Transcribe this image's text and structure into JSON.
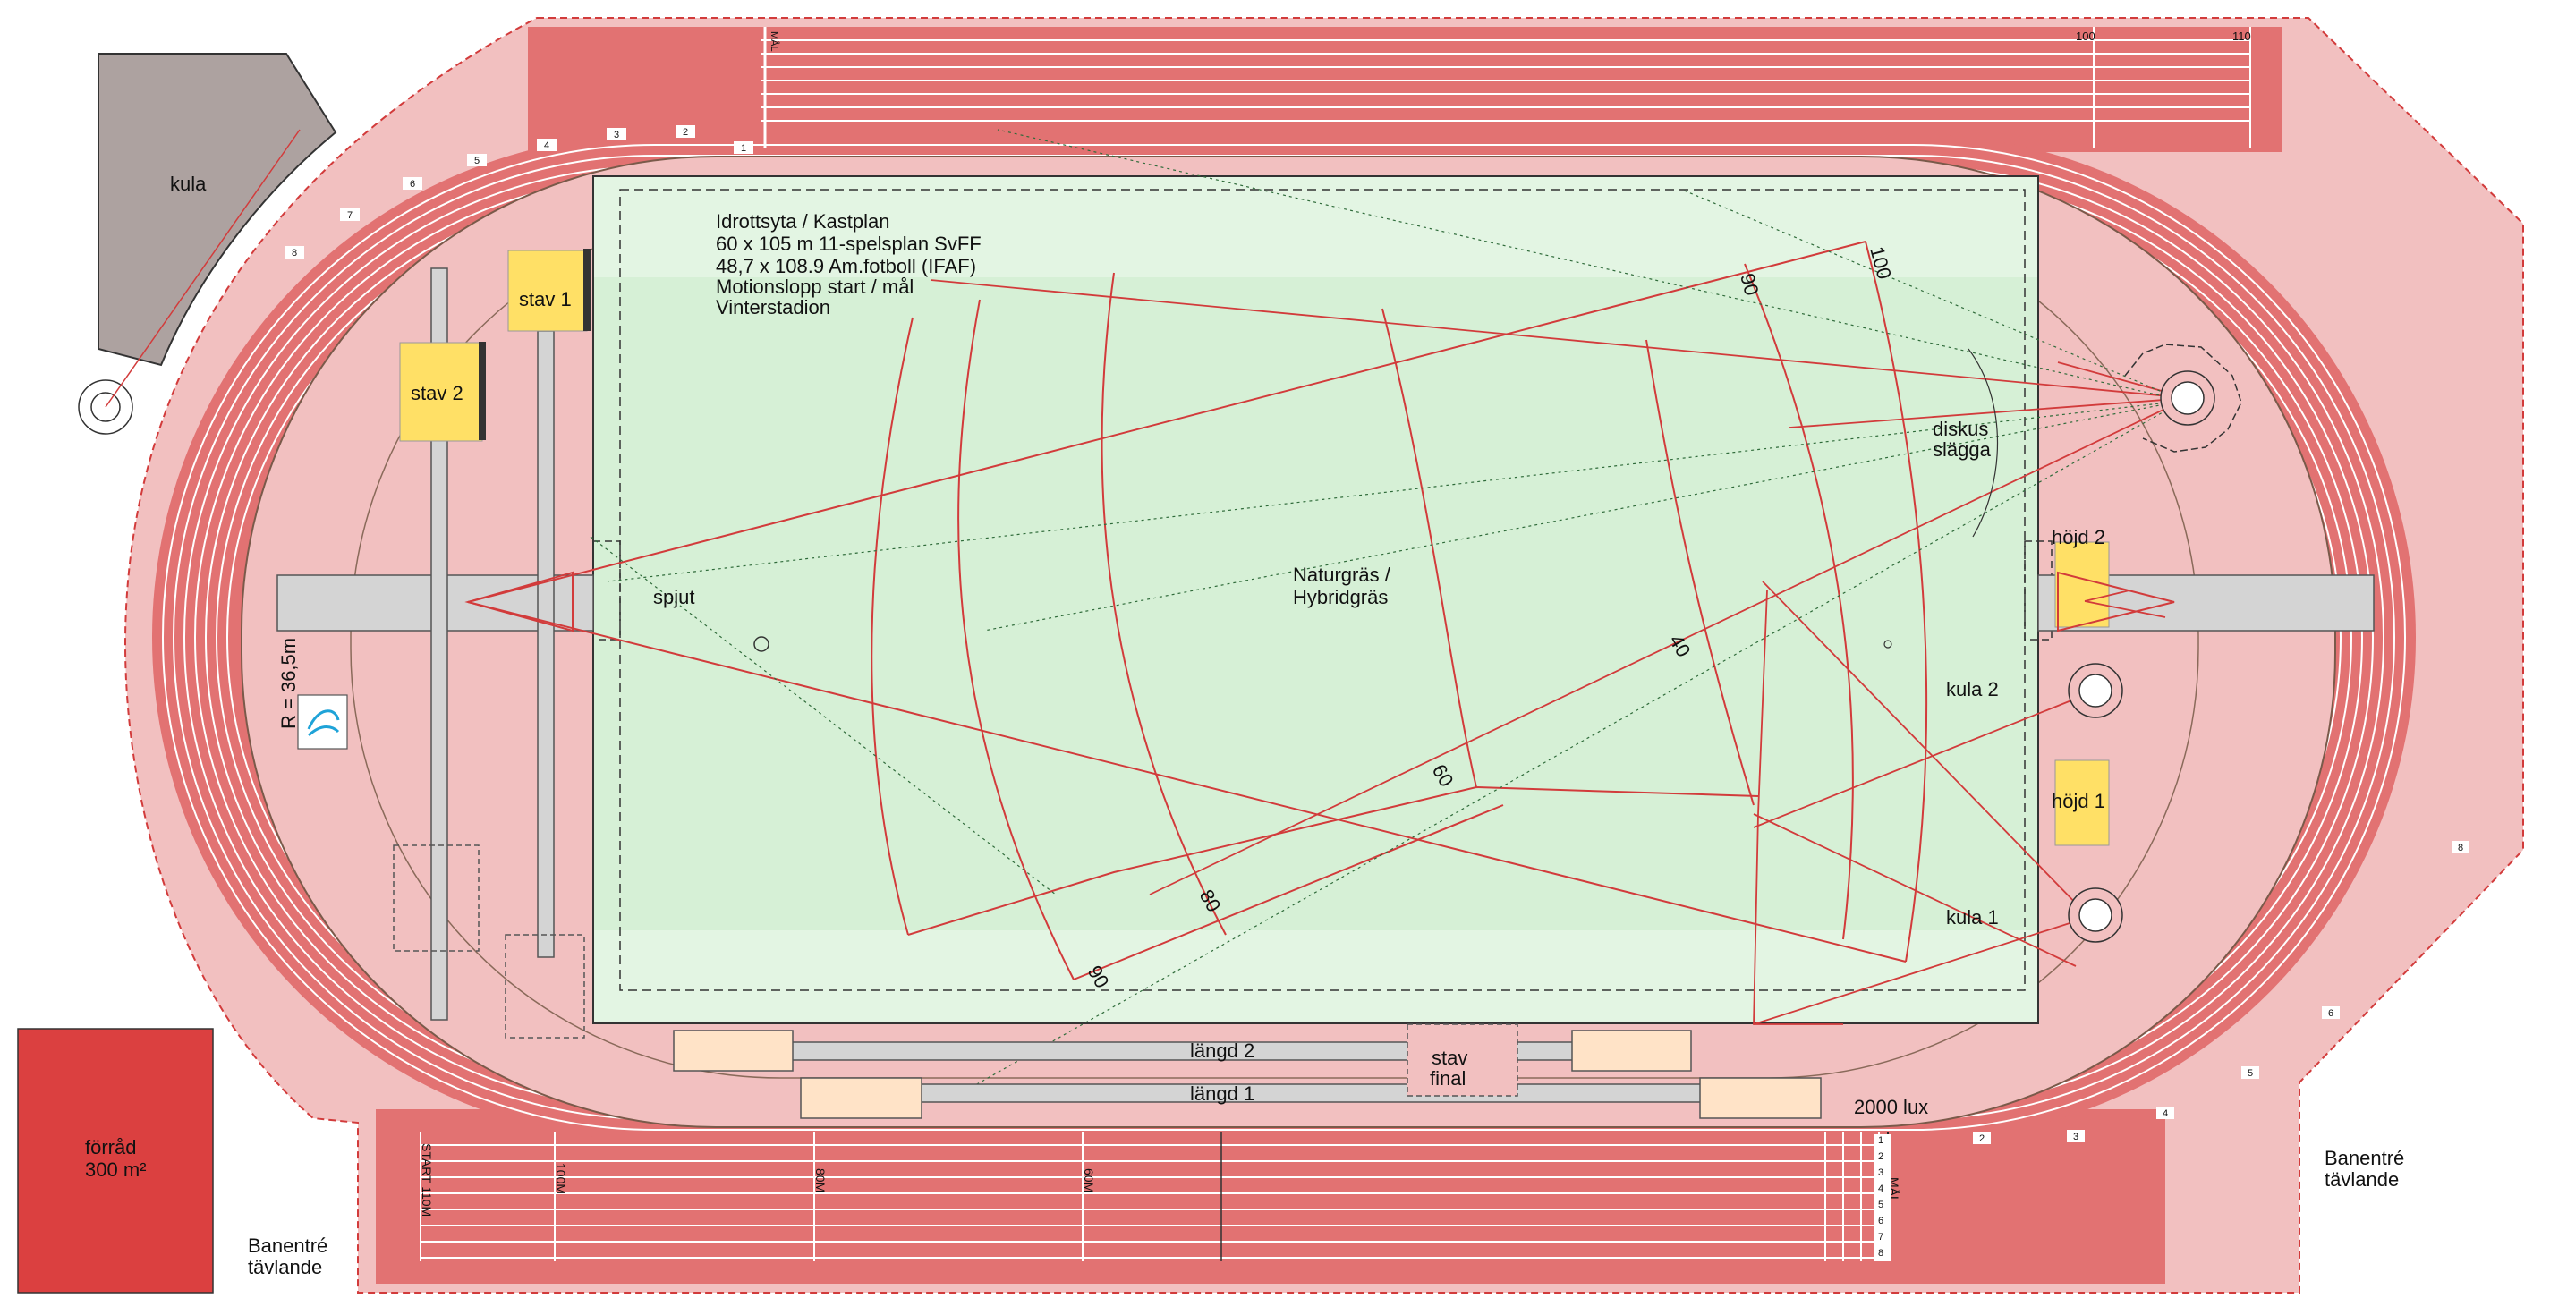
{
  "field": {
    "info_lines": [
      "Idrottsyta / Kastplan",
      "60 x 105 m 11-spelsplan SvFF",
      "48,7 x 108.9 Am.fotboll (IFAF)",
      "Motionslopp  start / mål",
      "Vinterstadion"
    ],
    "surface_line1": "Naturgräs /",
    "surface_line2": "Hybridgräs"
  },
  "areas": {
    "kula_top": "kula",
    "stav1": "stav 1",
    "stav2": "stav 2",
    "hojd2": "höjd 2",
    "hojd1": "höjd 1",
    "kula2": "kula 2",
    "kula1": "kula 1",
    "diskus_line1": "diskus",
    "diskus_line2": "slägga",
    "spjut": "spjut",
    "langd2": "längd 2",
    "langd1": "längd 1",
    "stav_final_line1": "stav",
    "stav_final_line2": "final",
    "lux": "2000 lux",
    "radius": "R = 36,5m",
    "forrad_line1": "förråd",
    "forrad_line2": "300 m²",
    "entrance_left_line1": "Banentré",
    "entrance_left_line2": "tävlande",
    "entrance_right_line1": "Banentré",
    "entrance_right_line2": "tävlande"
  },
  "sector_marks": {
    "m90_left": "90",
    "m80": "80",
    "m60": "60",
    "m40": "40",
    "m90_top": "90",
    "m100": "100"
  },
  "track_marks": {
    "mal_top": "MÅL",
    "m100": "100",
    "m110": "110",
    "start": "START 110M",
    "m100_bottom": "100M",
    "m80_bottom": "80M",
    "m60_bottom": "60M",
    "mal_bottom": "MÅL",
    "lanes": [
      "1",
      "2",
      "3",
      "4",
      "5",
      "6",
      "7",
      "8"
    ],
    "curve_lanes_top": [
      "1",
      "2",
      "3",
      "4",
      "5",
      "6",
      "7",
      "8"
    ],
    "curve_lanes_right": [
      "2",
      "3",
      "4",
      "5",
      "6",
      "8"
    ]
  },
  "colors": {
    "track": "#e27272",
    "track_light": "#f2c0c0",
    "field": "#e3f5e3",
    "field_band": "#d6f0d6",
    "pit": "#ffe066",
    "landing": "#ffe3c7",
    "storage": "#db4040",
    "runway": "#d4d4d4"
  }
}
